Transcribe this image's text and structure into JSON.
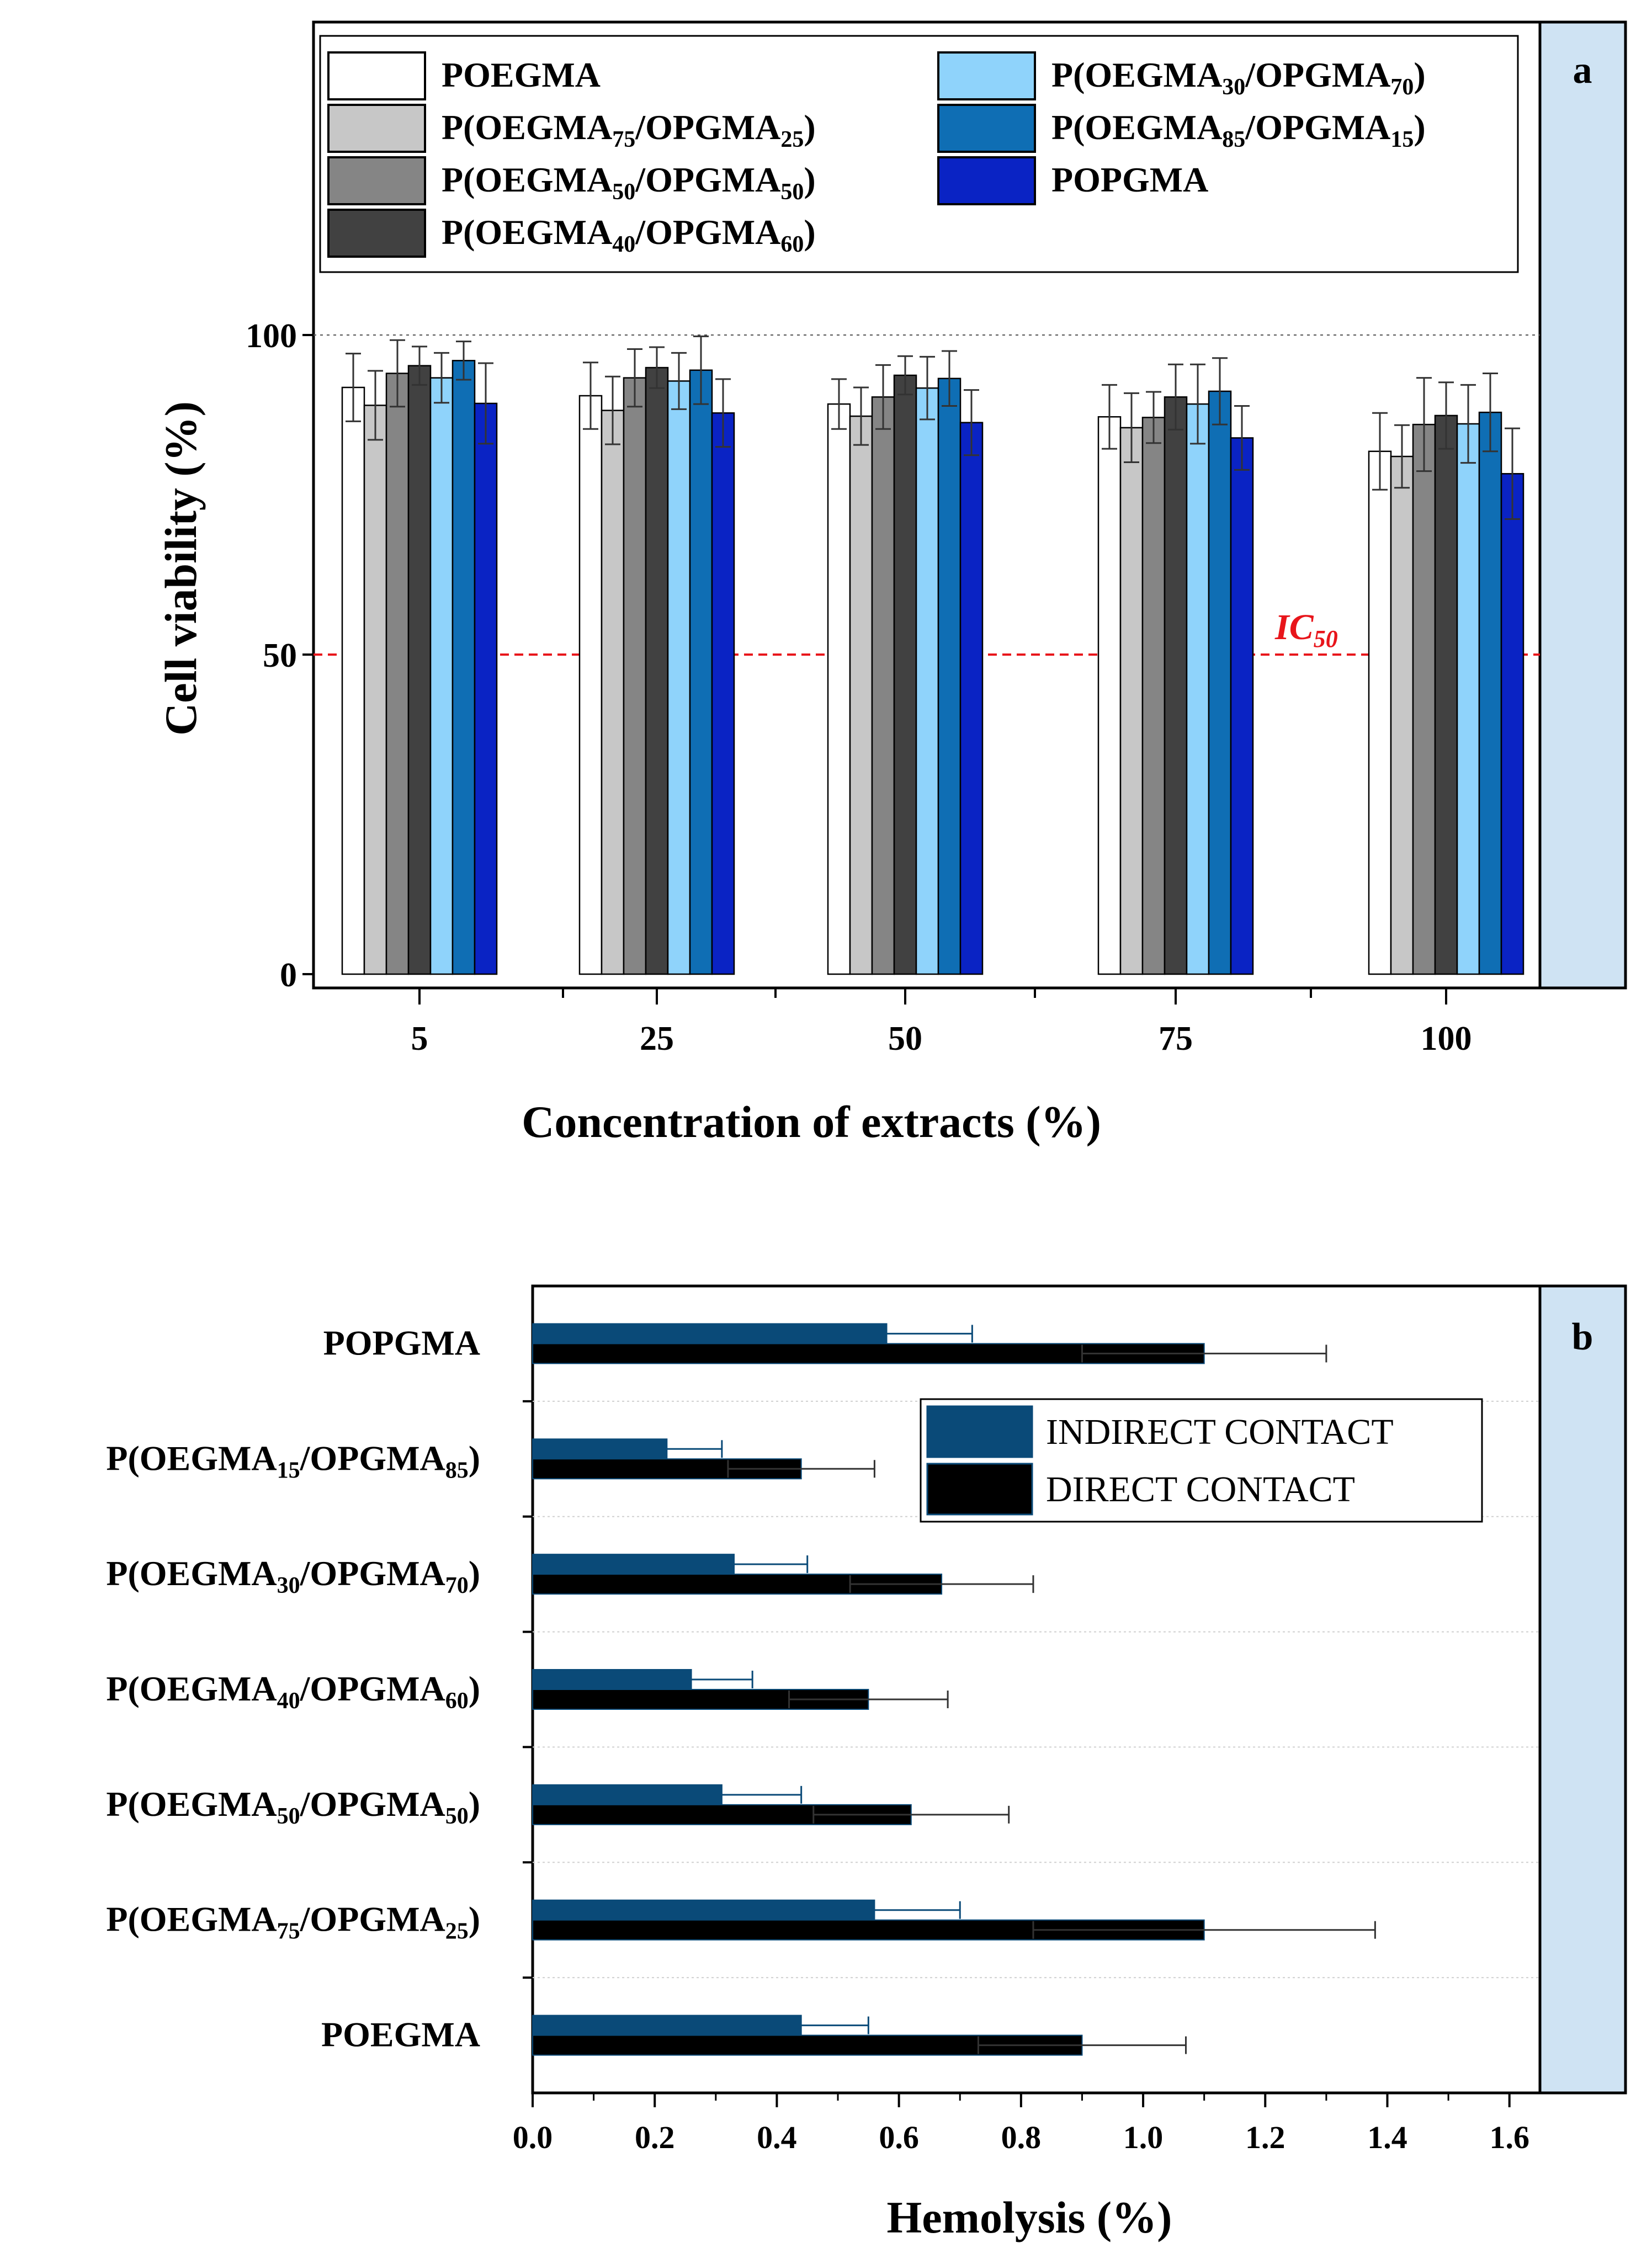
{
  "panels": {
    "a": {
      "label": "a"
    },
    "b": {
      "label": "b"
    }
  },
  "chart_data": [
    {
      "type": "bar",
      "panel": "a",
      "xlabel": "Concentration of extracts (%)",
      "ylabel": "Cell viability (%)",
      "categories": [
        "5",
        "25",
        "50",
        "75",
        "100"
      ],
      "ylim": [
        0,
        115
      ],
      "yticks": [
        0,
        50,
        100
      ],
      "legend_position": "top",
      "reference_lines": [
        {
          "value": 100,
          "style": "dotted",
          "color": "#555555"
        },
        {
          "value": 50,
          "style": "dashed",
          "color": "#e8151b",
          "label_main": "IC",
          "label_sub": "50"
        }
      ],
      "series": [
        {
          "name": "POEGMA",
          "color": "#ffffff",
          "legend": {
            "parts": [
              [
                "POEGMA",
                false
              ]
            ]
          },
          "values": [
            91.8,
            90.5,
            89.2,
            87.2,
            81.8
          ],
          "errors": [
            5.3,
            5.2,
            3.9,
            5.0,
            6.0
          ]
        },
        {
          "name": "P(OEGMA75/OPGMA25)",
          "color": "#c7c7c7",
          "legend": {
            "parts": [
              [
                "P(OEGMA",
                false
              ],
              [
                "75",
                true
              ],
              [
                "/OPGMA",
                false
              ],
              [
                "25",
                true
              ],
              [
                ")",
                false
              ]
            ]
          },
          "values": [
            89.0,
            88.2,
            87.3,
            85.5,
            81.0
          ],
          "errors": [
            5.4,
            5.3,
            4.5,
            5.4,
            4.9
          ]
        },
        {
          "name": "P(OEGMA50/OPGMA50)",
          "color": "#858585",
          "legend": {
            "parts": [
              [
                "P(OEGMA",
                false
              ],
              [
                "50",
                true
              ],
              [
                "/OPGMA",
                false
              ],
              [
                "50",
                true
              ],
              [
                ")",
                false
              ]
            ]
          },
          "values": [
            94.0,
            93.3,
            90.3,
            87.1,
            86.0
          ],
          "errors": [
            5.2,
            4.5,
            5.0,
            4.0,
            7.3
          ]
        },
        {
          "name": "P(OEGMA40/OPGMA60)",
          "color": "#414141",
          "legend": {
            "parts": [
              [
                "P(OEGMA",
                false
              ],
              [
                "40",
                true
              ],
              [
                "/OPGMA",
                false
              ],
              [
                "60",
                true
              ],
              [
                ")",
                false
              ]
            ]
          },
          "values": [
            95.2,
            94.9,
            93.7,
            90.3,
            87.4
          ],
          "errors": [
            3.0,
            3.2,
            3.0,
            5.1,
            5.2
          ]
        },
        {
          "name": "P(OEGMA30/OPGMA70)",
          "color": "#8fd3fb",
          "legend": {
            "parts": [
              [
                "P(OEGMA",
                false
              ],
              [
                "30",
                true
              ],
              [
                "/OPGMA",
                false
              ],
              [
                "70",
                true
              ],
              [
                ")",
                false
              ]
            ]
          },
          "values": [
            93.3,
            92.8,
            91.7,
            89.2,
            86.1
          ],
          "errors": [
            3.9,
            4.4,
            4.9,
            6.2,
            6.1
          ]
        },
        {
          "name": "P(OEGMA85/OPGMA15)",
          "color": "#0f6eb4",
          "legend": {
            "parts": [
              [
                "P(OEGMA",
                false
              ],
              [
                "85",
                true
              ],
              [
                "/OPGMA",
                false
              ],
              [
                "15",
                true
              ],
              [
                ")",
                false
              ]
            ]
          },
          "values": [
            96.0,
            94.5,
            93.2,
            91.2,
            87.9
          ],
          "errors": [
            3.0,
            5.3,
            4.3,
            5.2,
            6.1
          ]
        },
        {
          "name": "POPGMA",
          "color": "#0a23c4",
          "legend": {
            "parts": [
              [
                "POPGMA",
                false
              ]
            ]
          },
          "values": [
            89.3,
            87.8,
            86.3,
            83.9,
            78.3
          ],
          "errors": [
            6.3,
            5.3,
            5.1,
            5.0,
            7.1
          ]
        }
      ]
    },
    {
      "type": "bar",
      "orientation": "horizontal",
      "panel": "b",
      "xlabel": "Hemolysis (%)",
      "xlim": [
        0,
        1.65
      ],
      "xticks": [
        "0.0",
        "0.2",
        "0.4",
        "0.6",
        "0.8",
        "1.0",
        "1.2",
        "1.4",
        "1.6"
      ],
      "legend_position": "upper-right",
      "categories": [
        {
          "name": "POPGMA",
          "parts": [
            [
              "POPGMA",
              false
            ]
          ]
        },
        {
          "name": "P(OEGMA15/OPGMA85)",
          "parts": [
            [
              "P(OEGMA",
              false
            ],
            [
              "15",
              true
            ],
            [
              "/OPGMA",
              false
            ],
            [
              "85",
              true
            ],
            [
              ")",
              false
            ]
          ]
        },
        {
          "name": "P(OEGMA30/OPGMA70)",
          "parts": [
            [
              "P(OEGMA",
              false
            ],
            [
              "30",
              true
            ],
            [
              "/OPGMA",
              false
            ],
            [
              "70",
              true
            ],
            [
              ")",
              false
            ]
          ]
        },
        {
          "name": "P(OEGMA40/OPGMA60)",
          "parts": [
            [
              "P(OEGMA",
              false
            ],
            [
              "40",
              true
            ],
            [
              "/OPGMA",
              false
            ],
            [
              "60",
              true
            ],
            [
              ")",
              false
            ]
          ]
        },
        {
          "name": "P(OEGMA50/OPGMA50)",
          "parts": [
            [
              "P(OEGMA",
              false
            ],
            [
              "50",
              true
            ],
            [
              "/OPGMA",
              false
            ],
            [
              "50",
              true
            ],
            [
              ")",
              false
            ]
          ]
        },
        {
          "name": "P(OEGMA75/OPGMA25)",
          "parts": [
            [
              "P(OEGMA",
              false
            ],
            [
              "75",
              true
            ],
            [
              "/OPGMA",
              false
            ],
            [
              "25",
              true
            ],
            [
              ")",
              false
            ]
          ]
        },
        {
          "name": "POEGMA",
          "parts": [
            [
              "POEGMA",
              false
            ]
          ]
        }
      ],
      "series": [
        {
          "name": "INDIRECT CONTACT",
          "color": "#0a4a78",
          "values": [
            0.58,
            0.22,
            0.33,
            0.26,
            0.31,
            0.56,
            0.44
          ],
          "errors": [
            0.14,
            0.09,
            0.12,
            0.1,
            0.13,
            0.14,
            0.11
          ]
        },
        {
          "name": "DIRECT CONTACT",
          "color": "#000000",
          "values": [
            1.1,
            0.44,
            0.67,
            0.55,
            0.62,
            1.1,
            0.9
          ],
          "errors": [
            0.2,
            0.12,
            0.15,
            0.13,
            0.16,
            0.28,
            0.17
          ]
        }
      ]
    }
  ]
}
